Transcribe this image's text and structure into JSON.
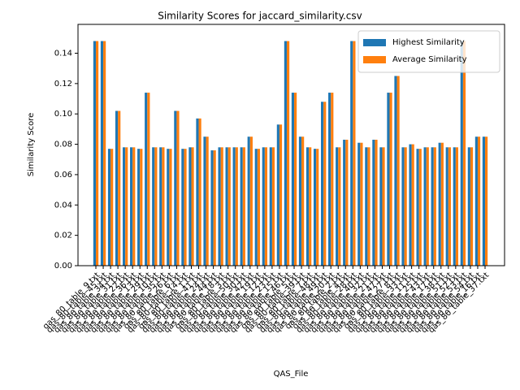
{
  "chart_data": {
    "type": "bar",
    "title": "Similarity Scores for jaccard_similarity.csv",
    "xlabel": "QAS_File",
    "ylabel": "Similarity Score",
    "categories": [
      "qas_80_table_9.txt",
      "qas_80_table_45.txt",
      "qas_80_table_34.txt",
      "qas_80_table_31.txt",
      "qas_80_table_22.txt",
      "qas_80_table_36.txt",
      "qas_80_table_13.txt",
      "qas_80_table_29.txt",
      "qas_80_table_10.txt",
      "qas_80_table_35.txt",
      "qas_80_table_26.txt",
      "qas_80_table_6.txt",
      "qas_80_table_14.txt",
      "qas_80_table_1.txt",
      "qas_80_table_41.txt",
      "qas_80_table_24.txt",
      "qas_80_table_44.txt",
      "qas_80_table_18.txt",
      "qas_80_table_3.txt",
      "qas_80_table_50.txt",
      "qas_80_table_30.txt",
      "qas_80_table_42.txt",
      "qas_80_table_19.txt",
      "qas_80_table_12.txt",
      "qas_80_table_23.txt",
      "qas_80_table_15.txt",
      "qas_80_table_46.txt",
      "qas_80_table_5.txt",
      "qas_80_table_39.txt",
      "qas_80_table_7.txt",
      "qas_80_table_48.txt",
      "qas_80_table_49.txt",
      "qas_80_table_20.txt",
      "qas_80_table_2.txt",
      "qas_80_table_4.txt",
      "qas_80_table_28.txt",
      "qas_80_table_40.txt",
      "qas_80_table_32.txt",
      "qas_80_table_21.txt",
      "qas_80_table_47.txt",
      "qas_80_table_27.txt",
      "qas_80_table_8.txt",
      "qas_80_table_33.txt",
      "qas_80_table_11.txt",
      "qas_80_table_25.txt",
      "qas_80_table_43.txt",
      "qas_80_table_17.txt",
      "qas_80_table_38.txt",
      "qas_80_table_51.txt",
      "qas_80_table_52.txt",
      "qas_80_table_53.txt",
      "qas_80_table_54.txt",
      "qas_80_table_16.txt",
      "qas_80_table_37.txt"
    ],
    "series": [
      {
        "name": "Highest Similarity",
        "color": "#1f77b4",
        "values": [
          0.148,
          0.148,
          0.077,
          0.102,
          0.078,
          0.078,
          0.077,
          0.114,
          0.078,
          0.078,
          0.077,
          0.102,
          0.077,
          0.078,
          0.097,
          0.085,
          0.076,
          0.078,
          0.078,
          0.078,
          0.078,
          0.085,
          0.077,
          0.078,
          0.078,
          0.093,
          0.148,
          0.114,
          0.085,
          0.078,
          0.077,
          0.108,
          0.114,
          0.078,
          0.083,
          0.148,
          0.081,
          0.078,
          0.083,
          0.078,
          0.114,
          0.125,
          0.078,
          0.08,
          0.077,
          0.078,
          0.078,
          0.081,
          0.078,
          0.078,
          0.148,
          0.078,
          0.085,
          0.085
        ]
      },
      {
        "name": "Average Similarity",
        "color": "#ff7f0e",
        "values": [
          0.148,
          0.148,
          0.077,
          0.102,
          0.078,
          0.078,
          0.077,
          0.114,
          0.078,
          0.078,
          0.077,
          0.102,
          0.077,
          0.078,
          0.097,
          0.085,
          0.076,
          0.078,
          0.078,
          0.078,
          0.078,
          0.085,
          0.077,
          0.078,
          0.078,
          0.093,
          0.148,
          0.114,
          0.085,
          0.078,
          0.077,
          0.108,
          0.114,
          0.078,
          0.083,
          0.148,
          0.081,
          0.078,
          0.083,
          0.078,
          0.114,
          0.125,
          0.078,
          0.08,
          0.077,
          0.078,
          0.078,
          0.081,
          0.078,
          0.078,
          0.148,
          0.078,
          0.085,
          0.085
        ]
      }
    ],
    "ylim": [
      0,
      0.159
    ],
    "yticks": [
      {
        "value": 0,
        "label": "0.00"
      },
      {
        "value": 0.02,
        "label": "0.02"
      },
      {
        "value": 0.04,
        "label": "0.04"
      },
      {
        "value": 0.06,
        "label": "0.06"
      },
      {
        "value": 0.08,
        "label": "0.08"
      },
      {
        "value": 0.1,
        "label": "0.10"
      },
      {
        "value": 0.12,
        "label": "0.12"
      },
      {
        "value": 0.14,
        "label": "0.14"
      }
    ],
    "legend": "upper right"
  }
}
